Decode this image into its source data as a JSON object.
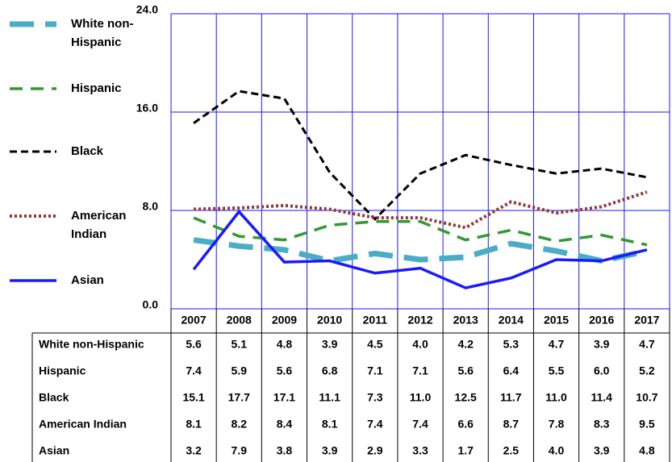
{
  "chart_data": {
    "type": "line",
    "categories": [
      "2007",
      "2008",
      "2009",
      "2010",
      "2011",
      "2012",
      "2013",
      "2014",
      "2015",
      "2016",
      "2017"
    ],
    "ylim": [
      0,
      24
    ],
    "yticks": [
      {
        "value": 0,
        "label": "0.0"
      },
      {
        "value": 8,
        "label": "8.0"
      },
      {
        "value": 16,
        "label": "16.0"
      },
      {
        "value": 24,
        "label": "24.0"
      }
    ],
    "grid": true,
    "legend": "left",
    "series": [
      {
        "name": "White non-Hispanic",
        "color": "#4bacc6",
        "values": [
          5.6,
          5.1,
          4.8,
          3.9,
          4.5,
          4.0,
          4.2,
          5.3,
          4.7,
          3.9,
          4.7
        ],
        "value_labels": [
          "5.6",
          "5.1",
          "4.8",
          "3.9",
          "4.5",
          "4.0",
          "4.2",
          "5.3",
          "4.7",
          "3.9",
          "4.7"
        ]
      },
      {
        "name": "Hispanic",
        "color": "#339933",
        "values": [
          7.4,
          5.9,
          5.6,
          6.8,
          7.1,
          7.1,
          5.6,
          6.4,
          5.5,
          6.0,
          5.2
        ],
        "value_labels": [
          "7.4",
          "5.9",
          "5.6",
          "6.8",
          "7.1",
          "7.1",
          "5.6",
          "6.4",
          "5.5",
          "6.0",
          "5.2"
        ]
      },
      {
        "name": "Black",
        "color": "#000000",
        "values": [
          15.1,
          17.7,
          17.1,
          11.1,
          7.3,
          11.0,
          12.5,
          11.7,
          11.0,
          11.4,
          10.7
        ],
        "value_labels": [
          "15.1",
          "17.7",
          "17.1",
          "11.1",
          "7.3",
          "11.0",
          "12.5",
          "11.7",
          "11.0",
          "11.4",
          "10.7"
        ]
      },
      {
        "name": "American Indian",
        "color": "#943634",
        "values": [
          8.1,
          8.2,
          8.4,
          8.1,
          7.4,
          7.4,
          6.6,
          8.7,
          7.8,
          8.3,
          9.5
        ],
        "value_labels": [
          "8.1",
          "8.2",
          "8.4",
          "8.1",
          "7.4",
          "7.4",
          "6.6",
          "8.7",
          "7.8",
          "8.3",
          "9.5"
        ]
      },
      {
        "name": "Asian",
        "color": "#1a1aff",
        "values": [
          3.2,
          7.9,
          3.8,
          3.9,
          2.9,
          3.3,
          1.7,
          2.5,
          4.0,
          3.9,
          4.8
        ],
        "value_labels": [
          "3.2",
          "7.9",
          "3.8",
          "3.9",
          "2.9",
          "3.3",
          "1.7",
          "2.5",
          "4.0",
          "3.9",
          "4.8"
        ]
      }
    ]
  }
}
